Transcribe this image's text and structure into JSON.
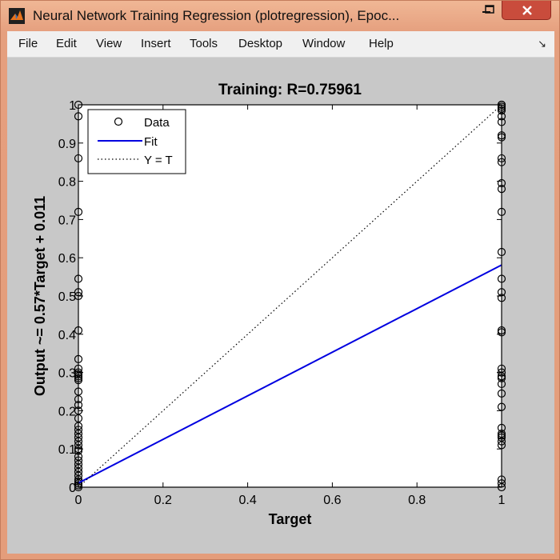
{
  "window": {
    "title": "Neural Network Training Regression (plotregression), Epoc...",
    "icon": "matlab-icon",
    "minimize_icon": "minimize-icon",
    "maximize_icon": "maximize-icon",
    "close_icon": "close-icon"
  },
  "menu": {
    "items": [
      "File",
      "Edit",
      "View",
      "Insert",
      "Tools",
      "Desktop",
      "Window",
      "Help"
    ],
    "dock_icon": "dock-arrow-icon",
    "dock_glyph": "↘"
  },
  "chart_data": {
    "type": "scatter",
    "title": "Training: R=0.75961",
    "xlabel": "Target",
    "ylabel": "Output ~= 0.57*Target + 0.011",
    "xlim": [
      0,
      1
    ],
    "ylim": [
      0,
      1
    ],
    "xticks": [
      0,
      0.2,
      0.4,
      0.6,
      0.8,
      1
    ],
    "yticks": [
      0,
      0.1,
      0.2,
      0.3,
      0.4,
      0.5,
      0.6,
      0.7,
      0.8,
      0.9,
      1
    ],
    "xtick_labels": [
      "0",
      "0.2",
      "0.4",
      "0.6",
      "0.8",
      "1"
    ],
    "ytick_labels": [
      "0",
      "0.1",
      "0.2",
      "0.3",
      "0.4",
      "0.5",
      "0.6",
      "0.7",
      "0.8",
      "0.9",
      "1"
    ],
    "legend": {
      "location": "top-left",
      "entries": [
        "Data",
        "Fit",
        "Y = T"
      ]
    },
    "series": [
      {
        "name": "Data",
        "marker": "circle",
        "color": "#000000",
        "x": [
          0,
          0,
          0,
          0,
          0,
          0,
          0,
          0,
          0,
          0,
          0,
          0,
          0,
          0,
          0,
          0,
          0,
          0,
          0,
          0,
          0,
          0,
          0,
          0,
          0,
          0,
          0,
          0,
          0,
          0,
          0,
          0,
          0,
          0,
          0,
          0,
          0,
          0,
          0,
          1,
          1,
          1,
          1,
          1,
          1,
          1,
          1,
          1,
          1,
          1,
          1,
          1,
          1,
          1,
          1,
          1,
          1,
          1,
          1,
          1,
          1,
          1,
          1,
          1,
          1,
          1,
          1,
          1,
          1,
          1,
          1,
          1,
          1,
          1,
          1
        ],
        "y": [
          0,
          0.005,
          0.01,
          0.015,
          0.02,
          0.03,
          0.04,
          0.05,
          0.06,
          0.07,
          0.08,
          0.095,
          0.1,
          0.11,
          0.12,
          0.13,
          0.14,
          0.15,
          0.16,
          0.18,
          0.2,
          0.215,
          0.23,
          0.25,
          0.28,
          0.29,
          0.3,
          0.335,
          0.41,
          0.5,
          0.51,
          0.545,
          0.72,
          0.86,
          0.97,
          1.0,
          0.285,
          0.295,
          0.31,
          0,
          0.01,
          0.02,
          0.11,
          0.12,
          0.14,
          0.155,
          0.21,
          0.245,
          0.27,
          0.285,
          0.29,
          0.3,
          0.31,
          0.405,
          0.41,
          0.495,
          0.51,
          0.545,
          0.615,
          0.72,
          0.78,
          0.795,
          0.85,
          0.86,
          0.915,
          0.92,
          0.955,
          0.97,
          0.985,
          0.99,
          0.995,
          1.0,
          1.0,
          0.13,
          0.135
        ]
      },
      {
        "name": "Fit",
        "line": "solid",
        "color": "#0000e0",
        "x": [
          0,
          1
        ],
        "y": [
          0.011,
          0.581
        ]
      },
      {
        "name": "Y = T",
        "line": "dotted",
        "color": "#000000",
        "x": [
          0,
          1
        ],
        "y": [
          0,
          1
        ]
      }
    ]
  }
}
